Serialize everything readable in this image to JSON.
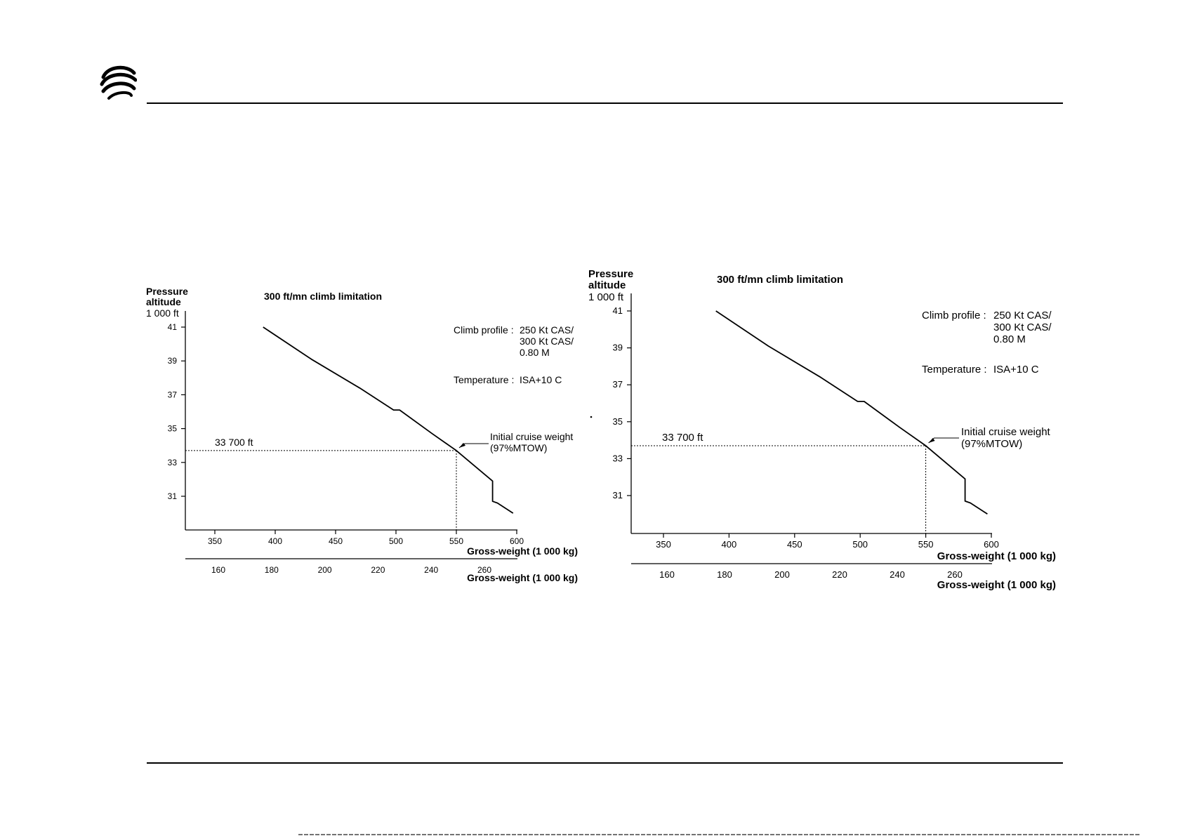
{
  "colors": {
    "line": "#000000",
    "background": "#ffffff"
  },
  "logo": {
    "icon": "company-logo-icon"
  },
  "chart_data": [
    {
      "type": "line",
      "title": "300 ft/mn climb limitation",
      "ylabel_lines": [
        "Pressure",
        "altitude",
        "1 000 ft"
      ],
      "xlabel": "Gross-weight (1 000 kg)",
      "x2label": "Gross-weight (1 000 kg)",
      "x_ticks": [
        350,
        400,
        450,
        500,
        550,
        600
      ],
      "x2_ticks": [
        160,
        180,
        200,
        220,
        240,
        260
      ],
      "y_ticks": [
        31,
        33,
        35,
        37,
        39,
        41
      ],
      "xlim": [
        325,
        600
      ],
      "ylim": [
        29,
        42
      ],
      "x2lim": [
        151,
        276
      ],
      "grid": false,
      "series": [
        {
          "x": [
            390,
            430,
            470,
            498,
            503,
            530,
            550,
            580,
            580,
            584,
            597
          ],
          "y": [
            41.0,
            39.1,
            37.4,
            36.1,
            36.1,
            34.7,
            33.7,
            31.9,
            30.7,
            30.6,
            30.0
          ]
        }
      ],
      "reference": {
        "x": 550,
        "y": 33.7,
        "label": "33 700 ft"
      },
      "annotation": [
        "Initial cruise weight",
        "(97%MTOW)"
      ],
      "info": {
        "climb_label": "Climb profile :",
        "climb_values": [
          "250 Kt CAS/",
          "300 Kt CAS/",
          "0.80 M"
        ],
        "temp_label": "Temperature :",
        "temp_value": "ISA+10 C"
      }
    },
    {
      "type": "line",
      "title": "300 ft/mn climb limitation",
      "ylabel_lines": [
        "Pressure",
        "altitude",
        "1 000 ft"
      ],
      "xlabel": "Gross-weight (1 000 kg)",
      "x2label": "Gross-weight (1 000 kg)",
      "x_ticks": [
        350,
        400,
        450,
        500,
        550,
        600
      ],
      "x2_ticks": [
        160,
        180,
        200,
        220,
        240,
        260
      ],
      "y_ticks": [
        31,
        33,
        35,
        37,
        39,
        41
      ],
      "xlim": [
        326,
        600
      ],
      "ylim": [
        29,
        42
      ],
      "x2lim": [
        147,
        286
      ],
      "grid": false,
      "series": [
        {
          "x": [
            390,
            430,
            470,
            498,
            503,
            530,
            550,
            580,
            580,
            584,
            597
          ],
          "y": [
            41.0,
            39.1,
            37.4,
            36.1,
            36.1,
            34.7,
            33.7,
            31.9,
            30.7,
            30.6,
            30.0
          ]
        }
      ],
      "reference": {
        "x": 550,
        "y": 33.7,
        "label": "33 700 ft"
      },
      "annotation": [
        "Initial cruise weight",
        "(97%MTOW)"
      ],
      "info": {
        "climb_label": "Climb profile :",
        "climb_values": [
          "250 Kt CAS/",
          "300 Kt CAS/",
          "0.80 M"
        ],
        "temp_label": "Temperature :",
        "temp_value": "ISA+10 C"
      }
    }
  ]
}
